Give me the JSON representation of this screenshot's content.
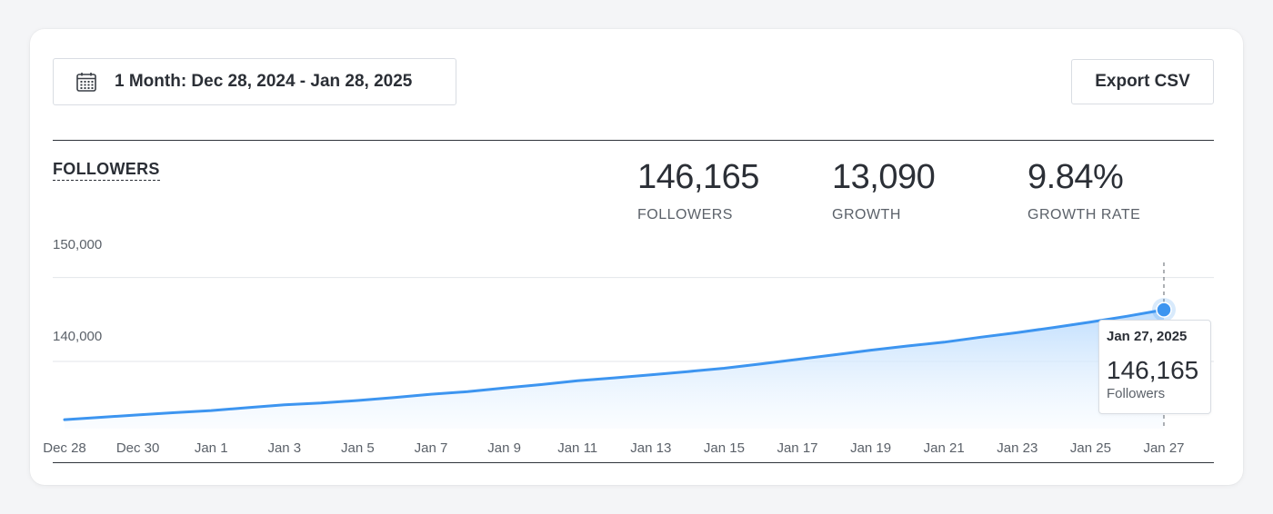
{
  "toolbar": {
    "date_range_label": "1 Month: Dec 28, 2024 - Jan 28, 2025",
    "calendar_icon": "calendar-icon",
    "export_label": "Export CSV"
  },
  "section": {
    "title": "FOLLOWERS"
  },
  "stats": [
    {
      "value": "146,165",
      "label": "FOLLOWERS"
    },
    {
      "value": "13,090",
      "label": "GROWTH"
    },
    {
      "value": "9.84%",
      "label": "GROWTH RATE"
    }
  ],
  "tooltip": {
    "date": "Jan 27, 2025",
    "value": "146,165",
    "label": "Followers"
  },
  "colors": {
    "line": "#3d95f0",
    "area_top": "#bcdcfd",
    "area_bottom": "#f3f9ff",
    "grid": "#e3e6ea",
    "text": "#2b2f36",
    "muted": "#5b6169"
  },
  "chart_data": {
    "type": "area",
    "title": "FOLLOWERS",
    "xlabel": "",
    "ylabel": "",
    "y_ticks": [
      {
        "value": 140000,
        "label": "140,000"
      },
      {
        "value": 150000,
        "label": "150,000"
      }
    ],
    "ylim": [
      132000,
      151800
    ],
    "x_tick_labels": [
      "Dec 28",
      "Dec 30",
      "Jan 1",
      "Jan 3",
      "Jan 5",
      "Jan 7",
      "Jan 9",
      "Jan 11",
      "Jan 13",
      "Jan 15",
      "Jan 17",
      "Jan 19",
      "Jan 21",
      "Jan 23",
      "Jan 25",
      "Jan 27"
    ],
    "series": [
      {
        "name": "Followers",
        "x": [
          "Dec 28",
          "Dec 29",
          "Dec 30",
          "Dec 31",
          "Jan 1",
          "Jan 2",
          "Jan 3",
          "Jan 4",
          "Jan 5",
          "Jan 6",
          "Jan 7",
          "Jan 8",
          "Jan 9",
          "Jan 10",
          "Jan 11",
          "Jan 12",
          "Jan 13",
          "Jan 14",
          "Jan 15",
          "Jan 16",
          "Jan 17",
          "Jan 18",
          "Jan 19",
          "Jan 20",
          "Jan 21",
          "Jan 22",
          "Jan 23",
          "Jan 24",
          "Jan 25",
          "Jan 26",
          "Jan 27"
        ],
        "values": [
          133075,
          133350,
          133630,
          133900,
          134150,
          134500,
          134850,
          135050,
          135350,
          135700,
          136100,
          136400,
          136850,
          137250,
          137700,
          138050,
          138400,
          138800,
          139200,
          139700,
          140250,
          140800,
          141350,
          141850,
          142300,
          142900,
          143450,
          144050,
          144700,
          145400,
          146165
        ]
      }
    ],
    "highlight": {
      "x": "Jan 27",
      "value": 146165
    },
    "grid": true
  }
}
